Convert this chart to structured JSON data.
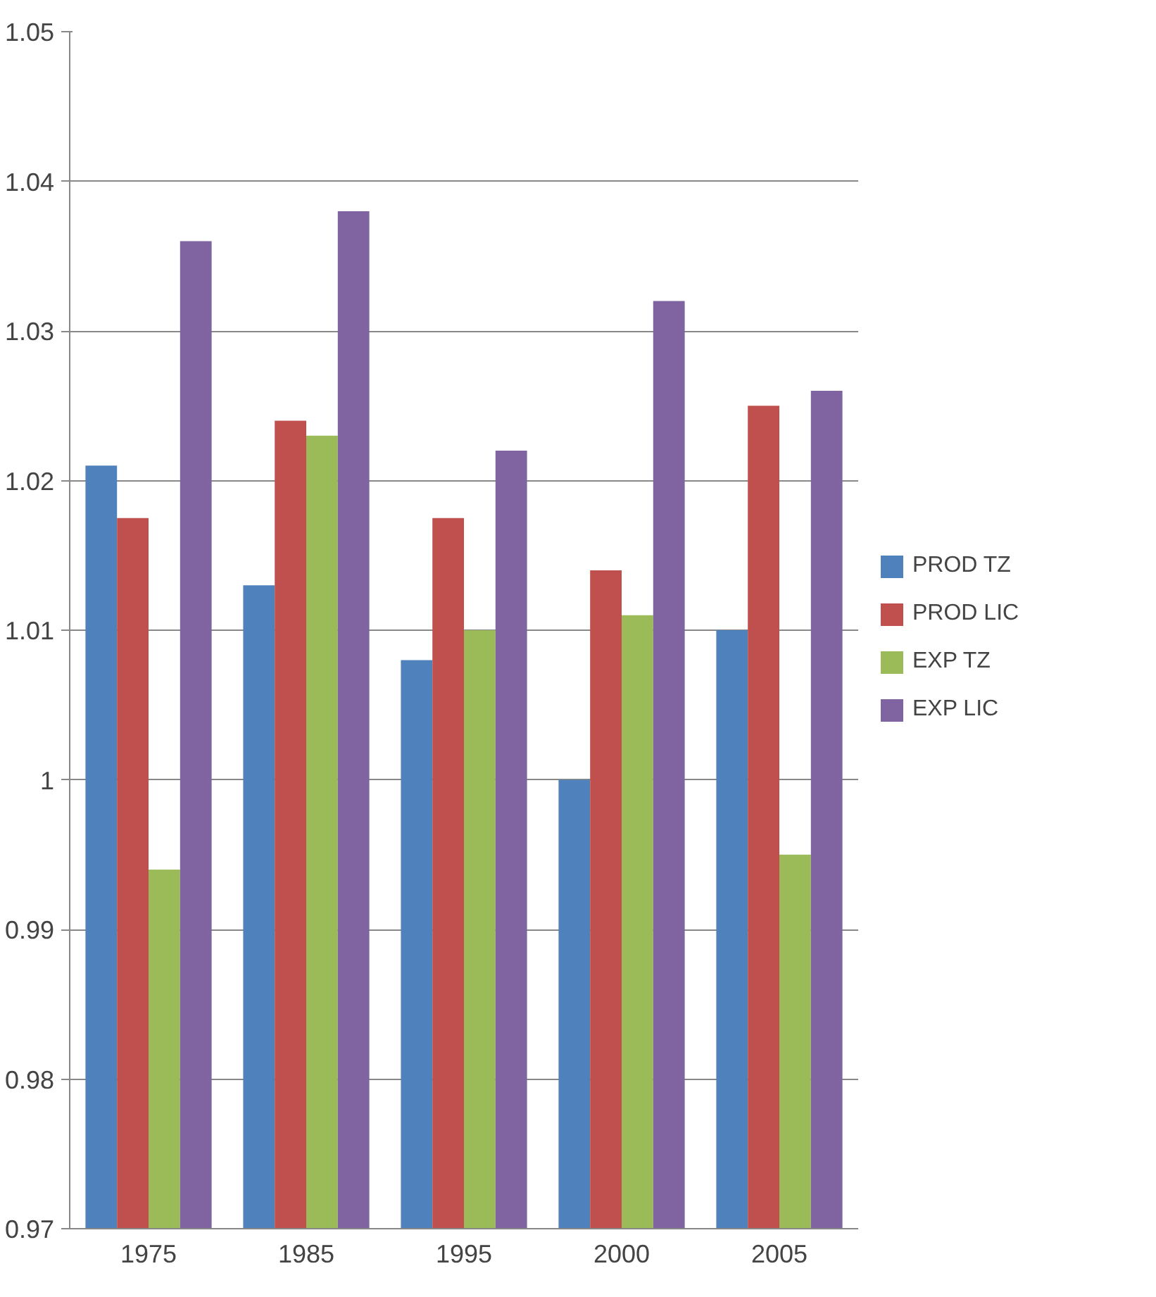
{
  "chart_data": {
    "type": "bar",
    "categories": [
      "1975",
      "1985",
      "1995",
      "2000",
      "2005"
    ],
    "series": [
      {
        "name": "PROD TZ",
        "color": "#4f81bd",
        "values": [
          1.021,
          1.013,
          1.008,
          1.0,
          1.01
        ]
      },
      {
        "name": "PROD LIC",
        "color": "#c0504d",
        "values": [
          1.0175,
          1.024,
          1.0175,
          1.014,
          1.025
        ]
      },
      {
        "name": "EXP TZ",
        "color": "#9bbb59",
        "values": [
          0.994,
          1.023,
          1.01,
          1.011,
          0.995
        ]
      },
      {
        "name": "EXP LIC",
        "color": "#8064a2",
        "values": [
          1.036,
          1.038,
          1.022,
          1.032,
          1.026
        ]
      }
    ],
    "ylim": [
      0.97,
      1.05
    ],
    "yticks": [
      0.97,
      0.98,
      0.99,
      1,
      1.01,
      1.02,
      1.03,
      1.04,
      1.05
    ],
    "grid": "y",
    "legend": "right"
  }
}
